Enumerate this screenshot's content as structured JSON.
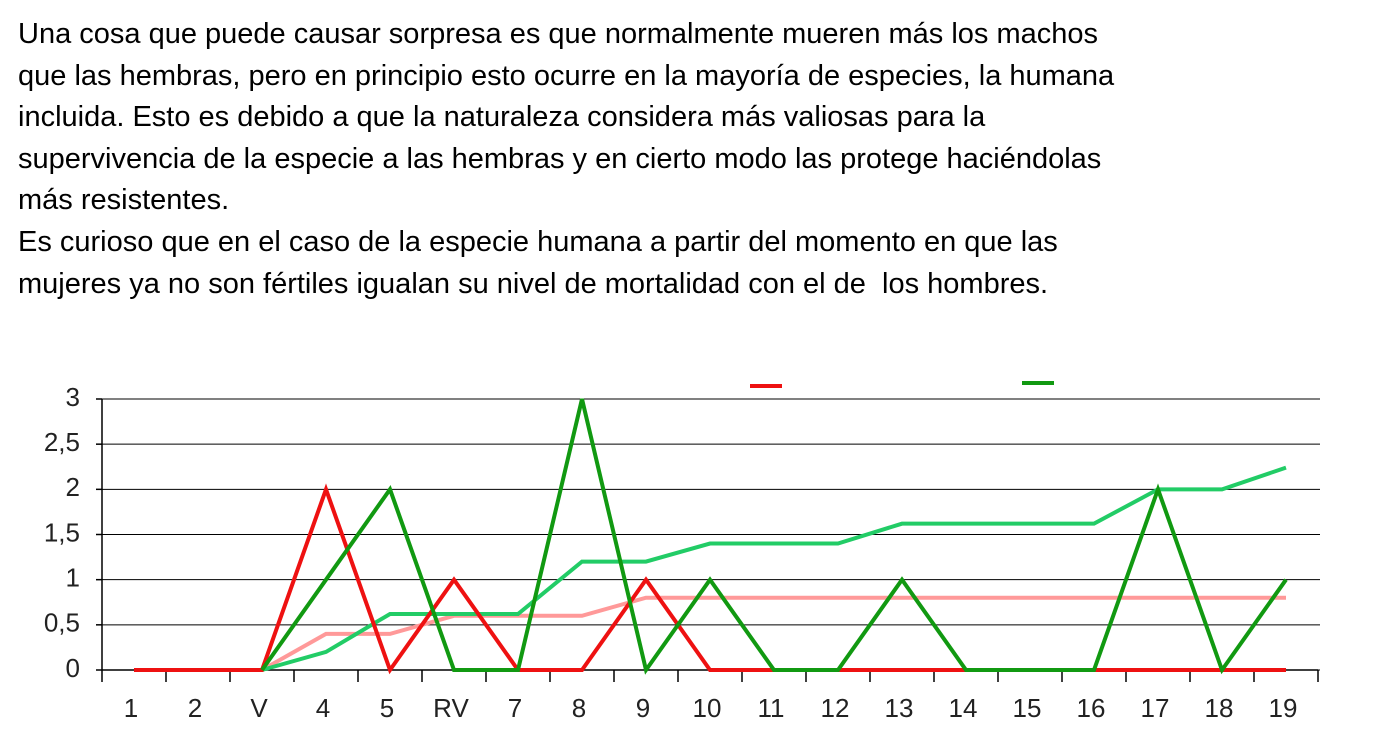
{
  "text_lines": [
    "Una cosa que puede causar sorpresa es que normalmente mueren más los machos",
    "que las hembras, pero en principio esto ocurre en la mayoría de especies, la humana",
    "incluida. Esto es debido a que la naturaleza considera más valiosas para la",
    "supervivencia de la especie a las hembras y en cierto modo las protege haciéndolas",
    "más resistentes.",
    "Es curioso que en el caso de la especie humana a partir del momento en que las",
    "mujeres ya no son fértiles igualan su nivel de mortalidad con el de  los hombres."
  ],
  "chart_data": {
    "type": "line",
    "categories": [
      "1",
      "2",
      "V",
      "4",
      "5",
      "RV",
      "7",
      "8",
      "9",
      "10",
      "11",
      "12",
      "13",
      "14",
      "15",
      "16",
      "17",
      "18",
      "19"
    ],
    "series": [
      {
        "color": "#ff9999",
        "values": [
          null,
          null,
          0,
          0.4,
          0.4,
          0.6,
          0.6,
          0.6,
          0.8,
          0.8,
          0.8,
          0.8,
          0.8,
          0.8,
          0.8,
          0.8,
          0.8,
          0.8,
          0.8
        ]
      },
      {
        "color": "#22cc66",
        "values": [
          null,
          null,
          0,
          0.2,
          0.62,
          0.62,
          0.62,
          1.2,
          1.2,
          1.4,
          1.4,
          1.4,
          1.62,
          1.62,
          1.62,
          1.62,
          2,
          2,
          2.24
        ]
      },
      {
        "color": "#ee1111",
        "values": [
          0,
          0,
          0,
          2,
          0,
          1,
          0,
          0,
          1,
          0,
          0,
          0,
          0,
          0,
          0,
          0,
          0,
          0,
          0
        ]
      },
      {
        "color": "#119911",
        "values": [
          null,
          null,
          0,
          1,
          2,
          0,
          0,
          3,
          0,
          1,
          0,
          0,
          1,
          0,
          0,
          0,
          2,
          0,
          1
        ]
      }
    ],
    "ylim": [
      0,
      3
    ],
    "yticks": [
      0,
      {
        "value": 0.5,
        "label": "0,5"
      },
      1,
      {
        "value": 1.5,
        "label": "1,5"
      },
      2,
      {
        "value": 2.5,
        "label": "2,5"
      },
      3
    ],
    "grid": true
  }
}
